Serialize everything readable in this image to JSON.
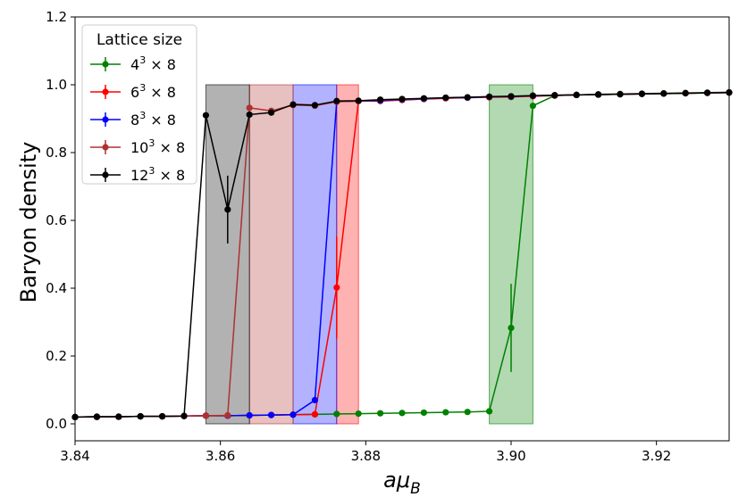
{
  "chart_data": {
    "type": "line",
    "xlabel_main": "aμ",
    "xlabel_sub": "B",
    "ylabel": "Baryon density",
    "xlim": [
      3.84,
      3.93
    ],
    "ylim": [
      -0.05,
      1.2
    ],
    "xticks": [
      3.84,
      3.86,
      3.88,
      3.9,
      3.92
    ],
    "xtick_labels": [
      "3.84",
      "3.86",
      "3.88",
      "3.90",
      "3.92"
    ],
    "yticks": [
      0.0,
      0.2,
      0.4,
      0.6,
      0.8,
      1.0,
      1.2
    ],
    "ytick_labels": [
      "0.0",
      "0.2",
      "0.4",
      "0.6",
      "0.8",
      "1.0",
      "1.2"
    ],
    "legend": {
      "title": "Lattice size",
      "placement": "top-left",
      "entries": [
        {
          "base": "4",
          "exp": "3",
          "rest": " × 8"
        },
        {
          "base": "6",
          "exp": "3",
          "rest": " × 8"
        },
        {
          "base": "8",
          "exp": "3",
          "rest": " × 8"
        },
        {
          "base": "10",
          "exp": "3",
          "rest": " × 8"
        },
        {
          "base": "12",
          "exp": "3",
          "rest": " × 8"
        }
      ]
    },
    "bands": [
      {
        "x0": 3.897,
        "x1": 3.903,
        "color": "#008000",
        "opacity": 0.3
      },
      {
        "x0": 3.876,
        "x1": 3.879,
        "color": "#ff0000",
        "opacity": 0.3
      },
      {
        "x0": 3.87,
        "x1": 3.876,
        "color": "#0000ff",
        "opacity": 0.3
      },
      {
        "x0": 3.864,
        "x1": 3.87,
        "color": "#b03030",
        "opacity": 0.3
      },
      {
        "x0": 3.858,
        "x1": 3.864,
        "color": "#000000",
        "opacity": 0.3
      }
    ],
    "band_ymax": 1.0,
    "series": [
      {
        "color": "#008000",
        "points": [
          [
            3.84,
            0.02
          ],
          [
            3.843,
            0.02
          ],
          [
            3.846,
            0.021
          ],
          [
            3.849,
            0.022
          ],
          [
            3.852,
            0.022
          ],
          [
            3.855,
            0.023
          ],
          [
            3.858,
            0.024
          ],
          [
            3.861,
            0.024
          ],
          [
            3.864,
            0.025
          ],
          [
            3.867,
            0.026
          ],
          [
            3.87,
            0.027
          ],
          [
            3.873,
            0.028
          ],
          [
            3.876,
            0.029
          ],
          [
            3.879,
            0.03
          ],
          [
            3.882,
            0.031
          ],
          [
            3.885,
            0.032
          ],
          [
            3.888,
            0.033
          ],
          [
            3.891,
            0.034
          ],
          [
            3.894,
            0.035
          ],
          [
            3.897,
            0.037
          ],
          [
            3.9,
            0.283
          ],
          [
            3.903,
            0.938
          ],
          [
            3.906,
            0.968
          ],
          [
            3.909,
            0.97
          ],
          [
            3.912,
            0.972
          ],
          [
            3.915,
            0.973
          ],
          [
            3.918,
            0.974
          ],
          [
            3.921,
            0.975
          ],
          [
            3.924,
            0.976
          ],
          [
            3.927,
            0.977
          ],
          [
            3.93,
            0.978
          ]
        ],
        "errors": [
          [
            3.9,
            0.283,
            0.13
          ]
        ]
      },
      {
        "color": "#ff0000",
        "points": [
          [
            3.84,
            0.02
          ],
          [
            3.843,
            0.021
          ],
          [
            3.846,
            0.021
          ],
          [
            3.849,
            0.022
          ],
          [
            3.852,
            0.022
          ],
          [
            3.855,
            0.023
          ],
          [
            3.858,
            0.024
          ],
          [
            3.861,
            0.024
          ],
          [
            3.864,
            0.025
          ],
          [
            3.867,
            0.026
          ],
          [
            3.87,
            0.027
          ],
          [
            3.873,
            0.028
          ],
          [
            3.876,
            0.402
          ],
          [
            3.879,
            0.952
          ],
          [
            3.882,
            0.952
          ],
          [
            3.885,
            0.955
          ],
          [
            3.888,
            0.958
          ],
          [
            3.891,
            0.96
          ],
          [
            3.894,
            0.962
          ],
          [
            3.897,
            0.963
          ],
          [
            3.9,
            0.964
          ],
          [
            3.903,
            0.966
          ],
          [
            3.906,
            0.968
          ],
          [
            3.909,
            0.97
          ],
          [
            3.912,
            0.971
          ],
          [
            3.915,
            0.972
          ],
          [
            3.918,
            0.973
          ],
          [
            3.921,
            0.974
          ],
          [
            3.924,
            0.975
          ],
          [
            3.927,
            0.976
          ],
          [
            3.93,
            0.977
          ]
        ],
        "errors": [
          [
            3.876,
            0.402,
            0.15
          ]
        ]
      },
      {
        "color": "#0000ff",
        "points": [
          [
            3.84,
            0.02
          ],
          [
            3.843,
            0.021
          ],
          [
            3.846,
            0.021
          ],
          [
            3.849,
            0.022
          ],
          [
            3.852,
            0.022
          ],
          [
            3.855,
            0.023
          ],
          [
            3.858,
            0.024
          ],
          [
            3.861,
            0.024
          ],
          [
            3.864,
            0.025
          ],
          [
            3.867,
            0.026
          ],
          [
            3.87,
            0.027
          ],
          [
            3.873,
            0.07
          ],
          [
            3.876,
            0.95
          ],
          [
            3.879,
            0.952
          ],
          [
            3.882,
            0.953
          ],
          [
            3.885,
            0.956
          ],
          [
            3.888,
            0.958
          ],
          [
            3.891,
            0.961
          ],
          [
            3.894,
            0.962
          ],
          [
            3.897,
            0.964
          ],
          [
            3.9,
            0.965
          ],
          [
            3.903,
            0.967
          ],
          [
            3.906,
            0.969
          ],
          [
            3.909,
            0.97
          ],
          [
            3.912,
            0.971
          ],
          [
            3.915,
            0.972
          ],
          [
            3.918,
            0.973
          ],
          [
            3.921,
            0.974
          ],
          [
            3.924,
            0.975
          ],
          [
            3.927,
            0.976
          ],
          [
            3.93,
            0.977
          ]
        ],
        "errors": []
      },
      {
        "color": "#b03030",
        "points": [
          [
            3.84,
            0.02
          ],
          [
            3.843,
            0.021
          ],
          [
            3.846,
            0.021
          ],
          [
            3.849,
            0.022
          ],
          [
            3.852,
            0.022
          ],
          [
            3.855,
            0.023
          ],
          [
            3.858,
            0.024
          ],
          [
            3.861,
            0.025
          ],
          [
            3.864,
            0.932
          ],
          [
            3.867,
            0.923
          ],
          [
            3.87,
            0.94
          ],
          [
            3.873,
            0.938
          ],
          [
            3.876,
            0.95
          ],
          [
            3.879,
            0.952
          ],
          [
            3.882,
            0.955
          ],
          [
            3.885,
            0.957
          ],
          [
            3.888,
            0.959
          ],
          [
            3.891,
            0.961
          ],
          [
            3.894,
            0.963
          ],
          [
            3.897,
            0.964
          ],
          [
            3.9,
            0.966
          ],
          [
            3.903,
            0.967
          ],
          [
            3.906,
            0.969
          ],
          [
            3.909,
            0.97
          ],
          [
            3.912,
            0.971
          ],
          [
            3.915,
            0.972
          ],
          [
            3.918,
            0.973
          ],
          [
            3.921,
            0.974
          ],
          [
            3.924,
            0.975
          ],
          [
            3.927,
            0.976
          ],
          [
            3.93,
            0.977
          ]
        ],
        "errors": []
      },
      {
        "color": "#000000",
        "points": [
          [
            3.84,
            0.02
          ],
          [
            3.843,
            0.021
          ],
          [
            3.846,
            0.021
          ],
          [
            3.849,
            0.022
          ],
          [
            3.852,
            0.022
          ],
          [
            3.855,
            0.023
          ],
          [
            3.858,
            0.91
          ],
          [
            3.861,
            0.632
          ],
          [
            3.864,
            0.912
          ],
          [
            3.867,
            0.918
          ],
          [
            3.87,
            0.942
          ],
          [
            3.873,
            0.94
          ],
          [
            3.876,
            0.952
          ],
          [
            3.879,
            0.953
          ],
          [
            3.882,
            0.956
          ],
          [
            3.885,
            0.958
          ],
          [
            3.888,
            0.96
          ],
          [
            3.891,
            0.962
          ],
          [
            3.894,
            0.963
          ],
          [
            3.897,
            0.965
          ],
          [
            3.9,
            0.966
          ],
          [
            3.903,
            0.968
          ],
          [
            3.906,
            0.969
          ],
          [
            3.909,
            0.97
          ],
          [
            3.912,
            0.971
          ],
          [
            3.915,
            0.972
          ],
          [
            3.918,
            0.973
          ],
          [
            3.921,
            0.974
          ],
          [
            3.924,
            0.975
          ],
          [
            3.927,
            0.976
          ],
          [
            3.93,
            0.977
          ]
        ],
        "errors": [
          [
            3.861,
            0.632,
            0.1
          ]
        ]
      }
    ]
  }
}
